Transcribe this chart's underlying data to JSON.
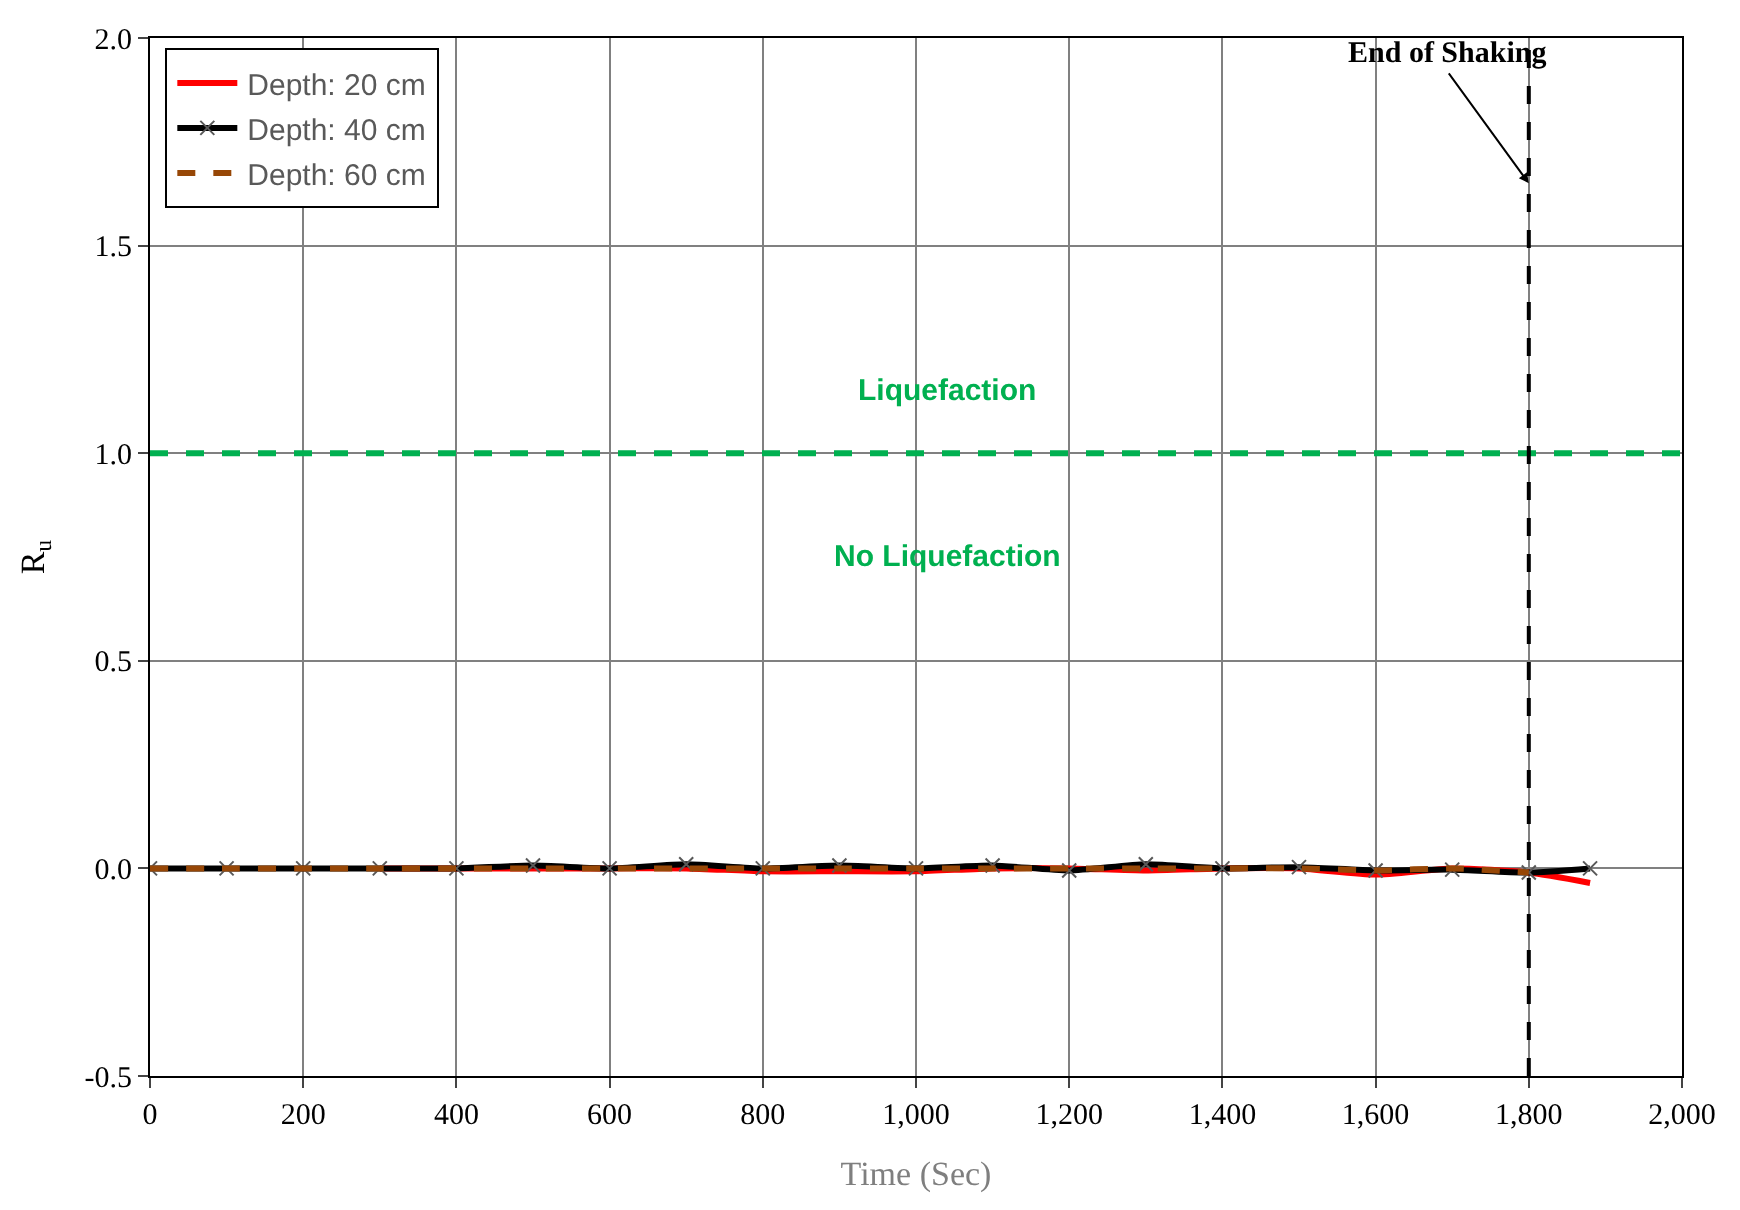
{
  "chart_data": {
    "type": "line",
    "xlabel": "Time (Sec)",
    "ylabel": "R$_{u}$",
    "xlim": [
      0,
      2000
    ],
    "xticks": [
      0,
      200,
      400,
      600,
      800,
      {
        "value": 1000,
        "label": "1,000"
      },
      {
        "value": 1200,
        "label": "1,200"
      },
      {
        "value": 1400,
        "label": "1,400"
      },
      {
        "value": 1600,
        "label": "1,600"
      },
      {
        "value": 1800,
        "label": "1,800"
      },
      {
        "value": 2000,
        "label": "2,000"
      }
    ],
    "ylim": [
      -0.5,
      2.0
    ],
    "yticks": [
      {
        "value": -0.5,
        "label": "-0.5"
      },
      {
        "value": 0,
        "label": "0.0"
      },
      {
        "value": 0.5,
        "label": "0.5"
      },
      {
        "value": 1,
        "label": "1.0"
      },
      {
        "value": 1.5,
        "label": "1.5"
      },
      {
        "value": 2,
        "label": "2.0"
      }
    ],
    "grid": true,
    "legend": "top left",
    "x": [
      0,
      100,
      200,
      300,
      400,
      500,
      600,
      700,
      800,
      900,
      1000,
      1100,
      1200,
      1300,
      1400,
      1500,
      1600,
      1700,
      1800,
      1880
    ],
    "series": [
      {
        "name": "Depth: 20 cm",
        "color": "#ff0000",
        "marker": "none",
        "line_style": "solid",
        "values": [
          null,
          null,
          null,
          0,
          0,
          0,
          0,
          0,
          -0.007,
          -0.007,
          -0.007,
          0,
          0,
          -0.005,
          0,
          0,
          -0.015,
          0,
          -0.01,
          -0.035
        ]
      },
      {
        "name": "Depth: 40 cm",
        "color": "#000000",
        "marker": "cross",
        "line_style": "solid",
        "values": [
          0,
          0,
          0,
          0,
          0,
          0.007,
          0,
          0.01,
          0,
          0.007,
          0,
          0.007,
          -0.005,
          0.01,
          0,
          0.003,
          -0.005,
          -0.003,
          -0.01,
          0
        ]
      },
      {
        "name": "Depth: 60 cm",
        "color": "#974706",
        "marker": "none",
        "line_style": "dashed",
        "values": [
          0,
          0,
          0,
          0,
          0,
          0,
          0,
          0,
          0,
          0,
          0,
          0,
          0,
          0,
          0,
          0,
          -0.005,
          0,
          -0.01,
          null
        ]
      }
    ],
    "ref_lines": [
      {
        "axis": "y",
        "value": 1,
        "color": "#00b050",
        "line_style": "dashed"
      },
      {
        "axis": "x",
        "value": 1800,
        "color": "#000000",
        "line_style": "dashed"
      }
    ],
    "annotations": [
      "Liquefaction",
      "No Liquefaction",
      {
        "text": "End of Shaking",
        "x": 1800,
        "y": 1.65
      }
    ]
  }
}
